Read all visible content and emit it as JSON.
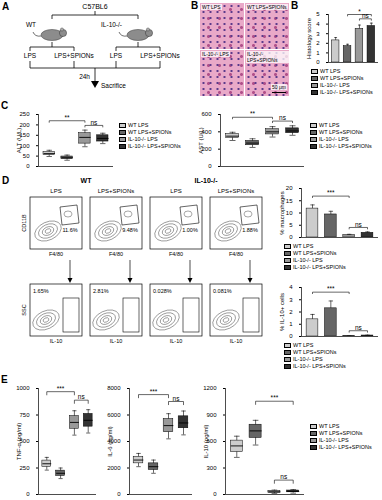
{
  "diagram": {
    "panel": "A",
    "strain": "C57BL6",
    "groups": [
      {
        "label": "WT",
        "treatments": [
          "LPS",
          "LPS+SPIONs"
        ]
      },
      {
        "label": "IL-10-/-",
        "treatments": [
          "LPS",
          "LPS+SPIONs"
        ]
      }
    ],
    "time": "24h",
    "endpoint": "Sacrifice"
  },
  "histology": {
    "panel": "B",
    "images": [
      "WT LPS",
      "WT LPS+SPIONs",
      "IL-10-/- LPS",
      "IL-10-/- LPS+SPIONs"
    ],
    "scale_bar": "50 μm"
  },
  "flow": {
    "panel": "D",
    "groups": [
      {
        "label": "WT",
        "columns": [
          "LPS",
          "LPS+SPIONs"
        ]
      },
      {
        "label": "IL-10-/-",
        "columns": [
          "LPS",
          "LPS+SPIONs"
        ]
      }
    ],
    "rows": [
      {
        "y_label": "CD11B",
        "x_label": "F4/80",
        "gates": [
          "11.6%",
          "9.48%",
          "1.00%",
          "1.88%"
        ]
      },
      {
        "y_label": "SSC",
        "x_label": "IL-10",
        "gates": [
          "1.65%",
          "2.81%",
          "0.028%",
          "0.081%"
        ]
      }
    ]
  },
  "chart_data": [
    {
      "panel": "B",
      "type": "bar",
      "y_label": "Histology score",
      "categories": [
        "WT LPS",
        "WT LPS+SPIONs",
        "IL-10-/- LPS",
        "IL-10-/- LPS+SPIONs"
      ],
      "colors": [
        "#cccccc",
        "#666666",
        "#999999",
        "#333333"
      ],
      "values": [
        2.3,
        1.7,
        3.5,
        3.8
      ],
      "errors": [
        0.3,
        0.2,
        0.4,
        0.3
      ],
      "ylim": [
        0,
        5
      ],
      "yticks": [
        0,
        1,
        2,
        3,
        4,
        5
      ],
      "grid": false,
      "legend": "bottom",
      "tick_labels": "y",
      "annotations": [
        {
          "text": "ns",
          "between": [
            "IL-10-/- LPS",
            "IL-10-/- LPS+SPIONs"
          ]
        },
        {
          "text": "*",
          "between": [
            "WT LPS+SPIONs",
            "IL-10-/- LPS+SPIONs"
          ]
        }
      ]
    },
    {
      "panel": "C",
      "type": "box",
      "y_label": "ALT (U/L)",
      "categories": [
        "WT LPS",
        "WT LPS+SPIONs",
        "IL-10-/- LPS",
        "IL-10-/- LPS+SPIONs"
      ],
      "colors": [
        "#cccccc",
        "#666666",
        "#999999",
        "#333333"
      ],
      "boxes": [
        {
          "min": 48,
          "q1": 55,
          "median": 62,
          "q3": 70,
          "max": 78
        },
        {
          "min": 30,
          "q1": 36,
          "median": 42,
          "q3": 48,
          "max": 55
        },
        {
          "min": 95,
          "q1": 110,
          "median": 140,
          "q3": 160,
          "max": 175
        },
        {
          "min": 110,
          "q1": 120,
          "median": 135,
          "q3": 150,
          "max": 160
        }
      ],
      "ylim": [
        0,
        250
      ],
      "yticks": [
        0,
        50,
        100,
        150,
        200,
        250
      ],
      "grid": false,
      "legend": "right",
      "tick_labels": "y",
      "annotations": [
        {
          "text": "ns",
          "between": [
            "IL-10-/- LPS",
            "IL-10-/- LPS+SPIONs"
          ]
        },
        {
          "text": "**",
          "between": [
            "WT LPS",
            "IL-10-/- LPS"
          ]
        }
      ]
    },
    {
      "type": "box",
      "y_label": "AST (U/L)",
      "categories": [
        "WT LPS",
        "WT LPS+SPIONs",
        "IL-10-/- LPS",
        "IL-10-/- LPS+SPIONs"
      ],
      "colors": [
        "#cccccc",
        "#666666",
        "#999999",
        "#333333"
      ],
      "boxes": [
        {
          "min": 300,
          "q1": 330,
          "median": 350,
          "q3": 375,
          "max": 395
        },
        {
          "min": 220,
          "q1": 245,
          "median": 270,
          "q3": 295,
          "max": 320
        },
        {
          "min": 340,
          "q1": 370,
          "median": 400,
          "q3": 430,
          "max": 460
        },
        {
          "min": 360,
          "q1": 385,
          "median": 410,
          "q3": 440,
          "max": 470
        }
      ],
      "ylim": [
        0,
        600
      ],
      "yticks": [
        0,
        200,
        400,
        600
      ],
      "grid": false,
      "legend": "right",
      "tick_labels": "y",
      "annotations": [
        {
          "text": "ns",
          "between": [
            "IL-10-/- LPS",
            "IL-10-/- LPS+SPIONs"
          ]
        },
        {
          "text": "**",
          "between": [
            "WT LPS",
            "IL-10-/- LPS"
          ]
        }
      ]
    },
    {
      "type": "bar",
      "y_label": "% macrophages",
      "categories": [
        "WT LPS",
        "WT LPS+SPIONs",
        "IL-10-/- LPS",
        "IL-10-/- LPS+SPIONs"
      ],
      "colors": [
        "#cccccc",
        "#666666",
        "#999999",
        "#333333"
      ],
      "values": [
        11.8,
        9.4,
        1.0,
        1.9
      ],
      "errors": [
        1.5,
        1.3,
        0.3,
        0.4
      ],
      "ylim": [
        0,
        20
      ],
      "yticks": [
        0,
        5,
        10,
        15,
        20
      ],
      "grid": false,
      "legend": "bottom",
      "tick_labels": "y",
      "annotations": [
        {
          "text": "ns",
          "between": [
            "IL-10-/- LPS",
            "IL-10-/- LPS+SPIONs"
          ]
        },
        {
          "text": "***",
          "between": [
            "WT LPS",
            "IL-10-/- LPS"
          ]
        }
      ]
    },
    {
      "type": "bar",
      "y_label": "% IL-10+ cells",
      "categories": [
        "WT LPS",
        "WT LPS+SPIONs",
        "IL-10-/- LPS",
        "IL-10-/- LPS+SPIONs"
      ],
      "colors": [
        "#cccccc",
        "#666666",
        "#999999",
        "#333333"
      ],
      "values": [
        1.4,
        2.3,
        0.03,
        0.08
      ],
      "errors": [
        0.4,
        0.6,
        0.01,
        0.03
      ],
      "ylim": [
        0,
        4
      ],
      "yticks": [
        0,
        1,
        2,
        3,
        4
      ],
      "grid": false,
      "legend": "bottom",
      "tick_labels": "y",
      "annotations": [
        {
          "text": "ns",
          "between": [
            "IL-10-/- LPS",
            "IL-10-/- LPS+SPIONs"
          ]
        },
        {
          "text": "***",
          "between": [
            "WT LPS",
            "IL-10-/- LPS"
          ]
        }
      ]
    },
    {
      "panel": "E",
      "type": "box",
      "y_label": "TNF-α (pg/ml)",
      "categories": [
        "WT LPS",
        "WT LPS+SPIONs",
        "IL-10-/- LPS",
        "IL-10-/- LPS+SPIONs"
      ],
      "colors": [
        "#cccccc",
        "#666666",
        "#999999",
        "#333333"
      ],
      "boxes": [
        {
          "min": 230,
          "q1": 260,
          "median": 290,
          "q3": 320,
          "max": 350
        },
        {
          "min": 150,
          "q1": 175,
          "median": 200,
          "q3": 225,
          "max": 250
        },
        {
          "min": 560,
          "q1": 620,
          "median": 680,
          "q3": 740,
          "max": 790
        },
        {
          "min": 580,
          "q1": 640,
          "median": 700,
          "q3": 760,
          "max": 800
        }
      ],
      "ylim": [
        0,
        1000
      ],
      "yticks": [
        0,
        250,
        500,
        750,
        1000
      ],
      "grid": false,
      "tick_labels": "y",
      "annotations": [
        {
          "text": "ns",
          "between": [
            "IL-10-/- LPS",
            "IL-10-/- LPS+SPIONs"
          ]
        },
        {
          "text": "***",
          "between": [
            "WT LPS",
            "IL-10-/- LPS"
          ]
        }
      ]
    },
    {
      "type": "box",
      "y_label": "IL-6 (pg/ml)",
      "categories": [
        "WT LPS",
        "WT LPS+SPIONs",
        "IL-10-/- LPS",
        "IL-10-/- LPS+SPIONs"
      ],
      "colors": [
        "#cccccc",
        "#666666",
        "#999999",
        "#333333"
      ],
      "boxes": [
        {
          "min": 2100,
          "q1": 2350,
          "median": 2600,
          "q3": 2850,
          "max": 3100
        },
        {
          "min": 1600,
          "q1": 1850,
          "median": 2100,
          "q3": 2350,
          "max": 2600
        },
        {
          "min": 4200,
          "q1": 4700,
          "median": 5200,
          "q3": 5700,
          "max": 6100
        },
        {
          "min": 4500,
          "q1": 5000,
          "median": 5400,
          "q3": 5900,
          "max": 6300
        }
      ],
      "ylim": [
        0,
        8000
      ],
      "yticks": [
        0,
        2000,
        4000,
        6000,
        8000
      ],
      "grid": false,
      "tick_labels": "y",
      "annotations": [
        {
          "text": "ns",
          "between": [
            "IL-10-/- LPS",
            "IL-10-/- LPS+SPIONs"
          ]
        },
        {
          "text": "***",
          "between": [
            "WT LPS",
            "IL-10-/- LPS"
          ]
        }
      ]
    },
    {
      "type": "box",
      "y_label": "IL-10 (pg/ml)",
      "categories": [
        "WT LPS",
        "WT LPS+SPIONs",
        "IL-10-/- LPS",
        "IL-10-/- LPS+SPIONs"
      ],
      "colors": [
        "#cccccc",
        "#666666",
        "#999999",
        "#333333"
      ],
      "boxes": [
        {
          "min": 420,
          "q1": 480,
          "median": 550,
          "q3": 610,
          "max": 660
        },
        {
          "min": 560,
          "q1": 640,
          "median": 720,
          "q3": 790,
          "max": 840
        },
        {
          "min": 10,
          "q1": 20,
          "median": 30,
          "q3": 40,
          "max": 50
        },
        {
          "min": 15,
          "q1": 25,
          "median": 35,
          "q3": 45,
          "max": 55
        }
      ],
      "ylim": [
        0,
        1200
      ],
      "yticks": [
        0,
        300,
        600,
        900,
        1200
      ],
      "grid": false,
      "legend": "right",
      "tick_labels": "y",
      "annotations": [
        {
          "text": "ns",
          "between": [
            "IL-10-/- LPS",
            "IL-10-/- LPS+SPIONs"
          ]
        },
        {
          "text": "***",
          "between": [
            "WT LPS+SPIONs",
            "IL-10-/- LPS+SPIONs"
          ]
        }
      ]
    }
  ]
}
